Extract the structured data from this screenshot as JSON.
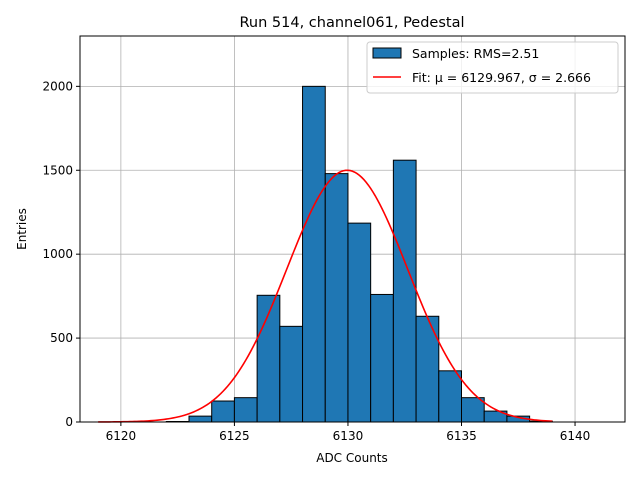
{
  "chart_data": {
    "type": "bar",
    "title": "Run 514, channel061, Pedestal",
    "xlabel": "ADC Counts",
    "ylabel": "Entries",
    "xlim": [
      6118.2,
      6142.2
    ],
    "ylim": [
      0,
      2300
    ],
    "xticks": [
      6120,
      6125,
      6130,
      6135,
      6140
    ],
    "yticks": [
      0,
      500,
      1000,
      1500,
      2000
    ],
    "grid": true,
    "legend_position": "top-right",
    "histogram": {
      "name": "Samples: RMS=2.51",
      "color": "#1f77b4",
      "bin_width": 1,
      "bin_lefts": [
        6122,
        6123,
        6124,
        6125,
        6126,
        6127,
        6128,
        6129,
        6130,
        6131,
        6132,
        6133,
        6134,
        6135,
        6136,
        6137,
        6138
      ],
      "counts": [
        3,
        35,
        125,
        145,
        755,
        570,
        2000,
        1480,
        1185,
        760,
        1560,
        630,
        305,
        145,
        65,
        35,
        5
      ]
    },
    "fit": {
      "name": "Fit: μ = 6129.967, σ = 2.666",
      "color": "#ff0000",
      "mu": 6129.967,
      "sigma": 2.666,
      "amplitude": 1500,
      "x_range": [
        6119,
        6139
      ]
    }
  }
}
